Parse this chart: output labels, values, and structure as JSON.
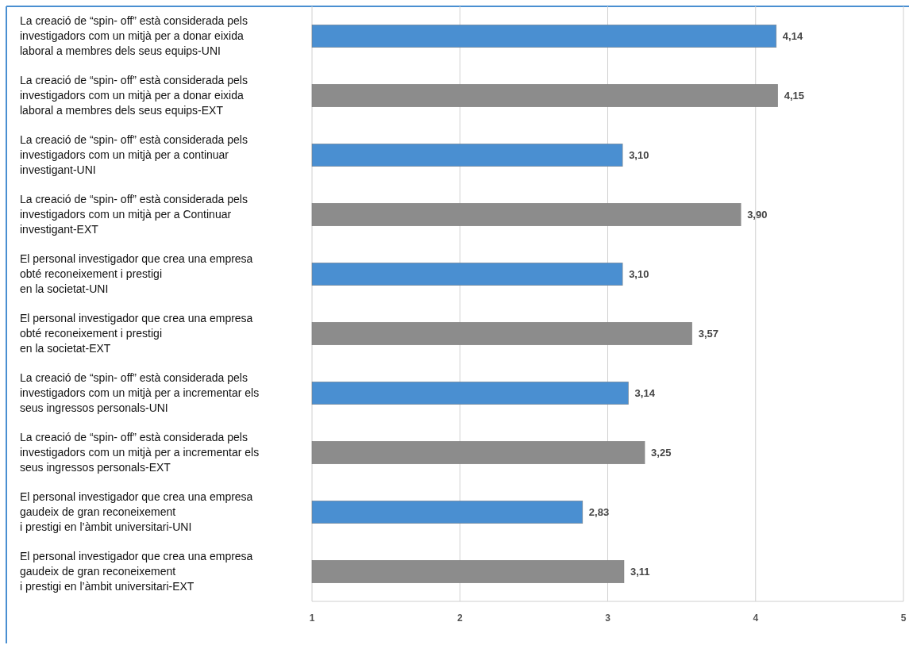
{
  "chart_data": {
    "type": "bar",
    "orientation": "horizontal",
    "categories": [
      "La creació de “spin- off” està considerada pels\ninvestigadors com un mitjà per a donar eixida\nlaboral a membres dels seus equips-UNI",
      "La creació de “spin- off” està considerada pels\ninvestigadors com un mitjà per a donar eixida\nlaboral a membres dels seus equips-EXT",
      "La creació de “spin- off” està considerada pels\ninvestigadors com un mitjà per a continuar\ninvestigant-UNI",
      "La creació de “spin- off” està considerada pels\ninvestigadors com un mitjà per a Continuar\ninvestigant-EXT",
      "El personal investigador que crea una empresa\nobté reconeixement i prestigi\nen la societat-UNI",
      "El personal investigador que crea una empresa\nobté reconeixement i prestigi\nen la societat-EXT",
      "La creació de “spin- off” està considerada pels\ninvestigadors com un mitjà per a incrementar els\nseus ingressos personals-UNI",
      "La creació de “spin- off” està considerada pels\ninvestigadors com un mitjà per a incrementar els\nseus ingressos personals-EXT",
      "El personal investigador que crea una empresa\ngaudeix de gran reconeixement\ni prestigi en l’àmbit universitari-UNI",
      "El personal investigador que crea una empresa\ngaudeix de gran reconeixement\ni prestigi en l’àmbit universitari-EXT"
    ],
    "values": [
      4.14,
      4.15,
      3.1,
      3.9,
      3.1,
      3.57,
      3.14,
      3.25,
      2.83,
      3.11
    ],
    "value_labels": [
      "4,14",
      "4,15",
      "3,10",
      "3,90",
      "3,10",
      "3,57",
      "3,14",
      "3,25",
      "2,83",
      "3,11"
    ],
    "colors": [
      "#4a8fd1",
      "#8c8c8c",
      "#4a8fd1",
      "#8c8c8c",
      "#4a8fd1",
      "#8c8c8c",
      "#4a8fd1",
      "#8c8c8c",
      "#4a8fd1",
      "#8c8c8c"
    ],
    "xlim": [
      1,
      5
    ],
    "xticks": [
      1,
      2,
      3,
      4,
      5
    ],
    "grid": "x"
  }
}
